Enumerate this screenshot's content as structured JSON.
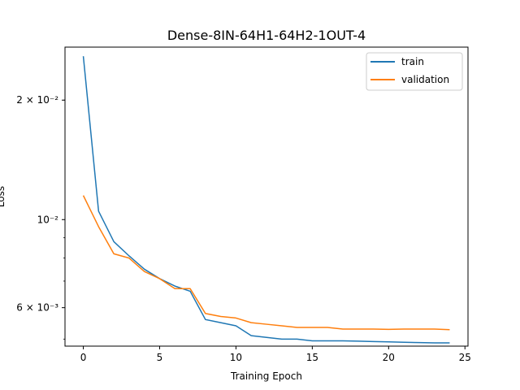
{
  "chart_data": {
    "type": "line",
    "title": "Dense-8IN-64H1-64H2-1OUT-4",
    "xlabel": "Training Epoch",
    "ylabel": "Loss",
    "yscale": "log",
    "xlim": [
      -1.2,
      25.2
    ],
    "ylim": [
      0.0048,
      0.0272
    ],
    "x_ticks": [
      0,
      5,
      10,
      15,
      20,
      25
    ],
    "x_tick_labels": [
      "0",
      "5",
      "10",
      "15",
      "20",
      "25"
    ],
    "y_ticks": [
      0.02,
      0.01,
      0.006
    ],
    "y_tick_labels": [
      "2 × 10⁻²",
      "10⁻²",
      "6 × 10⁻³"
    ],
    "x": [
      0,
      1,
      2,
      3,
      4,
      5,
      6,
      7,
      8,
      9,
      10,
      11,
      12,
      13,
      14,
      15,
      16,
      17,
      18,
      19,
      20,
      21,
      22,
      23,
      24
    ],
    "series": [
      {
        "name": "train",
        "color": "#1f77b4",
        "values": [
          0.0258,
          0.0105,
          0.0088,
          0.0081,
          0.0075,
          0.0071,
          0.0068,
          0.0066,
          0.0056,
          0.0055,
          0.0054,
          0.0051,
          0.00505,
          0.005,
          0.005,
          0.00495,
          0.00495,
          0.00495,
          0.00494,
          0.00493,
          0.00492,
          0.00491,
          0.0049,
          0.00489,
          0.00489
        ]
      },
      {
        "name": "validation",
        "color": "#ff7f0e",
        "values": [
          0.0115,
          0.0096,
          0.0082,
          0.008,
          0.0074,
          0.0071,
          0.0067,
          0.0067,
          0.0058,
          0.0057,
          0.00565,
          0.0055,
          0.00545,
          0.0054,
          0.00535,
          0.00535,
          0.00535,
          0.0053,
          0.0053,
          0.0053,
          0.00529,
          0.0053,
          0.0053,
          0.0053,
          0.00528
        ]
      }
    ],
    "legend": "top-right",
    "grid": false
  }
}
